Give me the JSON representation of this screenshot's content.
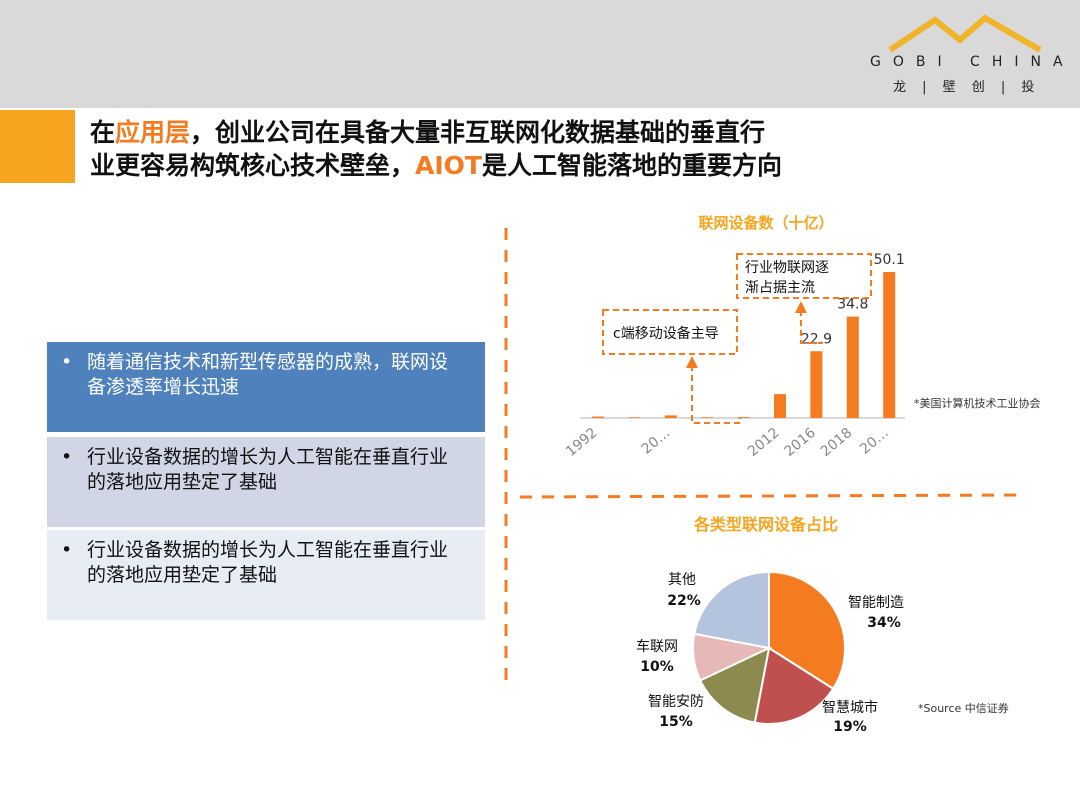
{
  "header": {
    "logo": "GOBI CHINA",
    "logo_sub": "龙 | 壁 创 | 投"
  },
  "title": {
    "line1": [
      "在",
      "应用层",
      "，创业公司在具备大量非互联网化数据基础的垂直行"
    ],
    "line2": [
      "业更容易构筑核心技术壁垒，",
      "AIOT",
      "是人工智能落地的重要方向"
    ]
  },
  "bullets": [
    "随着通信技术和新型传感器的成熟，联网设备渗透率增长迅速",
    "行业设备数据的增长为人工智能在垂直行业的落地应用垫定了基础",
    "行业设备数据的增长为人工智能在垂直行业的落地应用垫定了基础"
  ],
  "chart_data": [
    {
      "type": "bar",
      "title": "联网设备数（十亿）",
      "categories": [
        "1992",
        null,
        "20…",
        null,
        null,
        "2012",
        "2016",
        "2018",
        "20…"
      ],
      "values": [
        0.5,
        0.2,
        0.9,
        0.2,
        0.3,
        8.2,
        22.9,
        34.8,
        50.1
      ],
      "value_labels": [
        null,
        null,
        null,
        null,
        null,
        null,
        "22.9",
        "34.8",
        "50.1"
      ],
      "color": "#f47b20",
      "annotations": [
        "c端移动设备主导",
        "行业物联网逐渐占据主流"
      ],
      "note": "*美国计算机技术工业协会"
    },
    {
      "type": "pie",
      "title": "各类型联网设备占比",
      "categories": [
        "智能制造",
        "智慧城市",
        "智能安防",
        "车联网",
        "其他"
      ],
      "values": [
        34,
        19,
        15,
        10,
        22
      ],
      "value_labels": [
        "34%",
        "19%",
        "15%",
        "10%",
        "22%"
      ],
      "colors": [
        "#f47b20",
        "#c0504d",
        "#8c8a4f",
        "#e6b8b7",
        "#b4c3de"
      ],
      "note": "*Source 中信证券"
    }
  ]
}
